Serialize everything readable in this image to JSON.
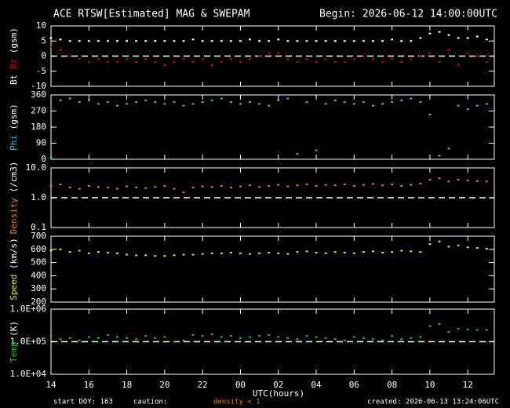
{
  "header": {
    "title": "ACE RTSW[Estimated] MAG & SWEPAM",
    "begin": "Begin: 2026-06-12 14:00:00UTC"
  },
  "footer": {
    "start": "start DOY: 163",
    "caution": "caution:",
    "density_note": "density < 1",
    "created": "created: 2026-06-13 13:24:06UTC"
  },
  "chart_data": [
    {
      "type": "scatter",
      "ylabel": "(gsm)",
      "ylim": [
        -10,
        10
      ],
      "yticks": [
        10,
        5,
        0,
        -5,
        -10
      ],
      "reference_line": 0,
      "series": [
        {
          "name": "Bt",
          "color": "#ffffff",
          "values": [
            6,
            5.5,
            5,
            5,
            5,
            5,
            5,
            5,
            5,
            5,
            5,
            5,
            5,
            5,
            5,
            5.5,
            5,
            5,
            5,
            5,
            5,
            5.5,
            5,
            5,
            5.5,
            5,
            5,
            5,
            5,
            5,
            5,
            5,
            5,
            5,
            5,
            5,
            5.5,
            5,
            5,
            6,
            7.5,
            8,
            7,
            6,
            6,
            6.5,
            5.5
          ]
        },
        {
          "name": "Bz",
          "color": "#e00000",
          "values": [
            3,
            2,
            0,
            -1,
            -2,
            -1,
            -2,
            -2,
            -1,
            -2,
            -1,
            -2,
            -3,
            -2,
            -1,
            -2,
            -1,
            -3,
            -2,
            -1,
            -2,
            -1,
            0,
            1,
            1,
            -1,
            -2,
            -1,
            -2,
            -1,
            -2,
            -2,
            -1,
            0,
            -1,
            -2,
            -1,
            -2,
            -1,
            0,
            1,
            -2,
            2,
            -3,
            1,
            0,
            -2
          ]
        }
      ]
    },
    {
      "type": "scatter",
      "ylabel": "(gsm)",
      "ylim": [
        0,
        360
      ],
      "yticks": [
        360,
        270,
        180,
        90,
        0
      ],
      "series": [
        {
          "name": "Phi",
          "color": "#30c0e0",
          "values": [
            10,
            330,
            340,
            320,
            330,
            310,
            320,
            300,
            310,
            320,
            330,
            320,
            310,
            320,
            300,
            310,
            320,
            330,
            340,
            320,
            310,
            320,
            310,
            300,
            330,
            340,
            30,
            320,
            50,
            310,
            330,
            320,
            310,
            320,
            300,
            310,
            320,
            330,
            340,
            320,
            250,
            20,
            60,
            300,
            280,
            300,
            310
          ]
        }
      ]
    },
    {
      "type": "scatter",
      "ylabel": "(/cm3)",
      "log": true,
      "ylim": [
        0.1,
        10
      ],
      "yticks": [
        {
          "value": 10,
          "label": "10.0"
        },
        {
          "value": 1,
          "label": "1.0"
        },
        0.1
      ],
      "reference_line": 1,
      "series": [
        {
          "name": "Density",
          "color": "#e08020",
          "values": [
            2.5,
            2.8,
            2.2,
            2.0,
            2.5,
            2.3,
            2.2,
            2.0,
            2.4,
            2.2,
            2.1,
            2.3,
            2.5,
            2.0,
            1.5,
            2.2,
            2.4,
            2.3,
            2.5,
            2.2,
            2.4,
            2.6,
            2.3,
            2.5,
            2.7,
            2.4,
            2.6,
            2.8,
            2.5,
            2.7,
            2.6,
            2.8,
            2.5,
            2.7,
            2.9,
            2.6,
            2.8,
            2.5,
            2.7,
            3.0,
            4.0,
            4.5,
            3.5,
            4.0,
            3.8,
            3.6,
            3.5
          ]
        }
      ]
    },
    {
      "type": "scatter",
      "ylabel": "(km/s)",
      "ylim": [
        200,
        700
      ],
      "yticks": [
        700,
        600,
        500,
        400,
        300,
        200
      ],
      "series": [
        {
          "name": "Speed",
          "color": "#e8e020",
          "values": [
            590,
            600,
            580,
            590,
            570,
            580,
            575,
            570,
            560,
            555,
            555,
            550,
            550,
            555,
            560,
            560,
            565,
            570,
            570,
            575,
            570,
            565,
            570,
            575,
            570,
            565,
            580,
            585,
            575,
            570,
            580,
            575,
            570,
            580,
            585,
            575,
            580,
            590,
            585,
            580,
            640,
            660,
            620,
            630,
            615,
            610,
            605
          ]
        }
      ]
    },
    {
      "type": "scatter",
      "ylabel": "(K)",
      "log": true,
      "ylim": [
        10000,
        1000000
      ],
      "yticks": [
        {
          "value": 1000000,
          "label": "1.0E+06"
        },
        {
          "value": 100000,
          "label": "1.0E+05"
        },
        {
          "value": 10000,
          "label": "1.0E+04"
        }
      ],
      "reference_line": 100000,
      "series": [
        {
          "name": "Temp",
          "color": "#20c020",
          "values": [
            150000,
            120000,
            130000,
            110000,
            140000,
            130000,
            160000,
            140000,
            130000,
            120000,
            150000,
            130000,
            140000,
            100000,
            110000,
            160000,
            150000,
            170000,
            140000,
            150000,
            130000,
            140000,
            150000,
            160000,
            140000,
            130000,
            120000,
            150000,
            140000,
            130000,
            120000,
            110000,
            140000,
            130000,
            120000,
            110000,
            150000,
            120000,
            130000,
            140000,
            300000,
            350000,
            200000,
            250000,
            240000,
            230000,
            230000
          ]
        }
      ],
      "x": [
        14,
        14.5,
        15,
        15.5,
        16,
        16.5,
        17,
        17.5,
        18,
        18.5,
        19,
        19.5,
        20,
        20.5,
        21,
        21.5,
        22,
        22.5,
        23,
        23.5,
        24,
        24.5,
        25,
        25.5,
        26,
        26.5,
        27,
        27.5,
        28,
        28.5,
        29,
        29.5,
        30,
        30.5,
        31,
        31.5,
        32,
        32.5,
        33,
        33.5,
        34,
        34.5,
        35,
        35.5,
        36,
        36.5,
        37
      ],
      "xlim": [
        14,
        37.4
      ],
      "xlabel": "UTC(hours)",
      "xticks": [
        {
          "value": 14,
          "label": "14"
        },
        {
          "value": 16,
          "label": "16"
        },
        {
          "value": 18,
          "label": "18"
        },
        {
          "value": 20,
          "label": "20"
        },
        {
          "value": 22,
          "label": "22"
        },
        {
          "value": 24,
          "label": "00"
        },
        {
          "value": 26,
          "label": "02"
        },
        {
          "value": 28,
          "label": "04"
        },
        {
          "value": 30,
          "label": "06"
        },
        {
          "value": 32,
          "label": "08"
        },
        {
          "value": 34,
          "label": "10"
        },
        {
          "value": 36,
          "label": "12"
        }
      ]
    }
  ]
}
